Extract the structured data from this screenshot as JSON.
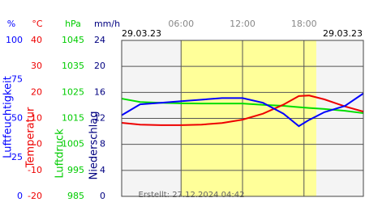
{
  "chart_data": {
    "type": "line",
    "date_left": "29.03.23",
    "date_right": "29.03.23",
    "footer": "Erstellt: 27.12.2024 04:42",
    "xlim": [
      0.2,
      23.8
    ],
    "xticks": [
      {
        "value": 6,
        "label": "06:00"
      },
      {
        "value": 12,
        "label": "12:00"
      },
      {
        "value": 18,
        "label": "18:00"
      }
    ],
    "daylight": [
      6,
      19.2
    ],
    "grid": true,
    "axes": [
      {
        "unit": "%",
        "title": "Luftfeuchtigkeit",
        "color": "#0000ff",
        "ylim": [
          0,
          100
        ],
        "yticks": [
          0,
          25,
          50,
          75,
          100
        ]
      },
      {
        "unit": "°C",
        "title": "Temperatur",
        "color": "#ee0000",
        "ylim": [
          -20,
          40
        ],
        "yticks": [
          -20,
          -10,
          0,
          10,
          20,
          30,
          40
        ]
      },
      {
        "unit": "hPa",
        "title": "Luftdruck",
        "color": "#00cc00",
        "ylim": [
          985,
          1045
        ],
        "yticks": [
          985,
          995,
          1005,
          1015,
          1025,
          1035,
          1045
        ]
      },
      {
        "unit": "mm/h",
        "title": "Niederschlag",
        "color": "#000080",
        "ylim": [
          0,
          24
        ],
        "yticks": [
          0,
          4,
          8,
          12,
          16,
          20,
          24
        ]
      }
    ],
    "x": [
      0.2,
      2,
      4,
      6,
      8,
      10,
      12,
      14,
      16,
      17.5,
      18.5,
      20,
      22,
      23.8
    ],
    "series": [
      {
        "axis": 2,
        "color": "#00dd00",
        "values": [
          1022.6,
          1021.3,
          1021,
          1020.8,
          1020.7,
          1020.7,
          1020.7,
          1020.2,
          1019.8,
          1019.3,
          1019,
          1018.6,
          1017.9,
          1017
        ]
      },
      {
        "axis": 1,
        "color": "#ee0000",
        "values": [
          8.3,
          7.6,
          7.4,
          7.4,
          7.6,
          8.2,
          9.5,
          11.8,
          15.3,
          18.6,
          18.8,
          17.3,
          14.6,
          12.6
        ]
      },
      {
        "axis": 0,
        "color": "#0000ff",
        "values": [
          52,
          59,
          60,
          61,
          62,
          63,
          63,
          60,
          53,
          45,
          49,
          54,
          58,
          66
        ]
      }
    ]
  }
}
